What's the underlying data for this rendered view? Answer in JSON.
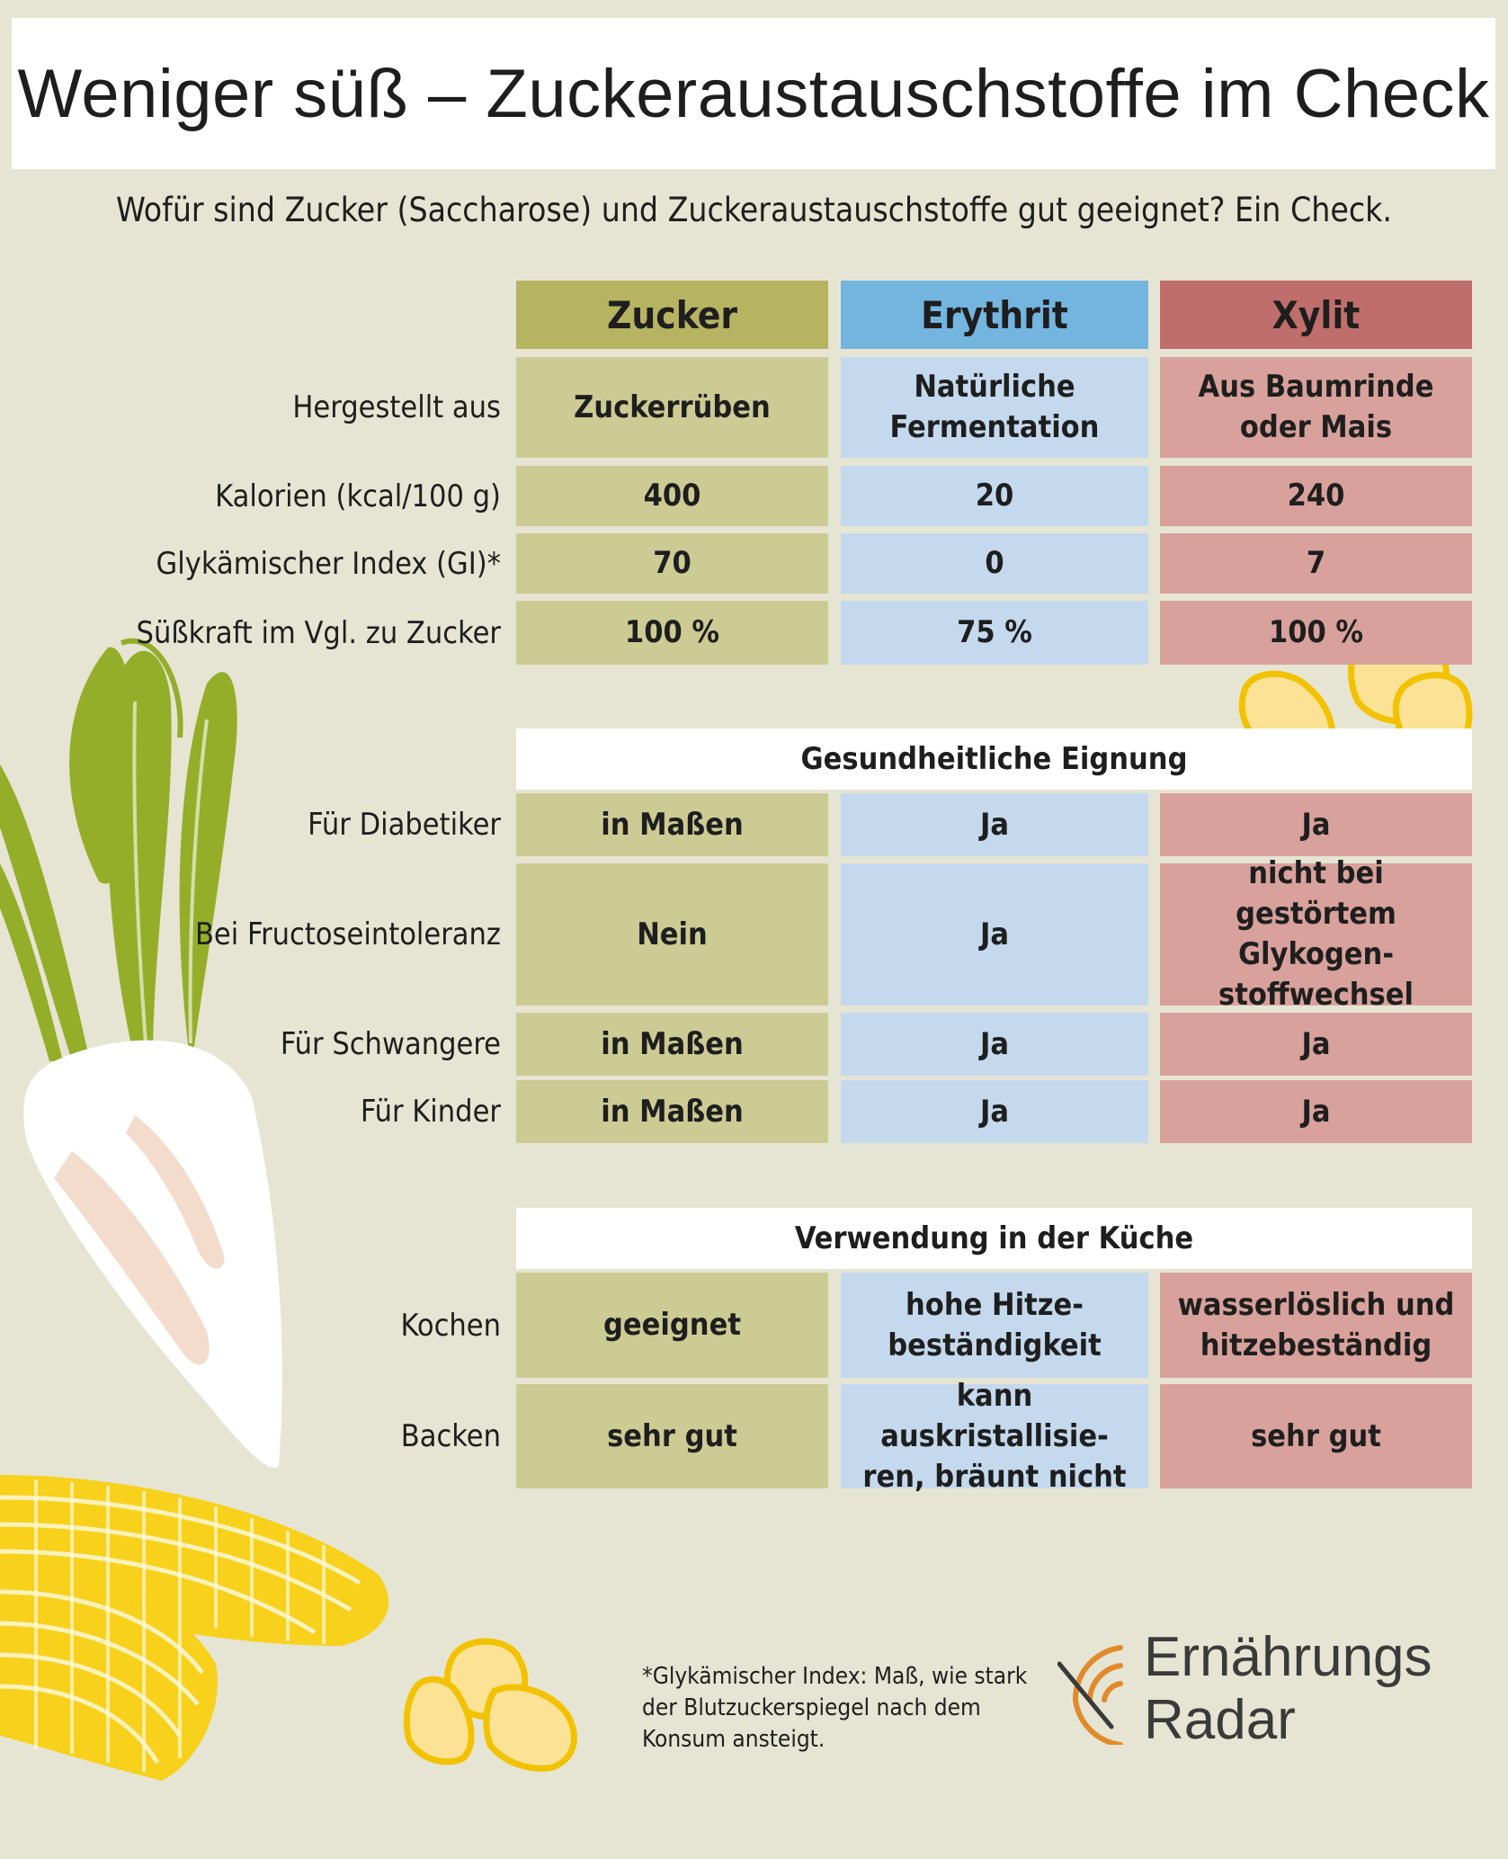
{
  "title": "Weniger süß – Zuckeraustauschstoffe im Check",
  "subtitle": "Wofür sind Zucker (Saccharose) und Zuckeraustauschstoffe gut geeignet? Ein Check.",
  "columns": [
    "Zucker",
    "Erythrit",
    "Xylit"
  ],
  "colors": {
    "background": "#e6e5d3",
    "zucker_header": "#b6b461",
    "erythrit_header": "#74b5e0",
    "xylit_header": "#c06e6b",
    "zucker_cell": "#cccb94",
    "erythrit_cell": "#c4d9ee",
    "xylit_cell": "#d8a19b"
  },
  "section1": {
    "rows": [
      {
        "label": "Hergestellt aus",
        "values": [
          [
            "Zuckerrüben"
          ],
          [
            "Natürliche",
            "Fermentation"
          ],
          [
            "Aus Baumrinde",
            "oder Mais"
          ]
        ]
      },
      {
        "label": "Kalorien (kcal/100 g)",
        "values": [
          [
            "400"
          ],
          [
            "20"
          ],
          [
            "240"
          ]
        ]
      },
      {
        "label": "Glykämischer Index (GI)*",
        "values": [
          [
            "70"
          ],
          [
            "0"
          ],
          [
            "7"
          ]
        ]
      },
      {
        "label": "Süßkraft im Vgl. zu Zucker",
        "values": [
          [
            "100 %"
          ],
          [
            "75 %"
          ],
          [
            "100 %"
          ]
        ]
      }
    ]
  },
  "section2": {
    "title": "Gesundheitliche Eignung",
    "rows": [
      {
        "label": "Für Diabetiker",
        "values": [
          [
            "in Maßen"
          ],
          [
            "Ja"
          ],
          [
            "Ja"
          ]
        ]
      },
      {
        "label": "Bei Fructoseintoleranz",
        "values": [
          [
            "Nein"
          ],
          [
            "Ja"
          ],
          [
            "nicht bei gestörtem",
            "Glykogen-",
            "stoffwechsel"
          ]
        ]
      },
      {
        "label": "Für Schwangere",
        "values": [
          [
            "in Maßen"
          ],
          [
            "Ja"
          ],
          [
            "Ja"
          ]
        ]
      },
      {
        "label": "Für Kinder",
        "values": [
          [
            "in Maßen"
          ],
          [
            "Ja"
          ],
          [
            "Ja"
          ]
        ]
      }
    ]
  },
  "section3": {
    "title": "Verwendung in der Küche",
    "rows": [
      {
        "label": "Kochen",
        "values": [
          [
            "geeignet"
          ],
          [
            "hohe Hitze-",
            "beständigkeit"
          ],
          [
            "wasserlöslich und",
            "hitzebeständig"
          ]
        ]
      },
      {
        "label": "Backen",
        "values": [
          [
            "sehr gut"
          ],
          [
            "kann auskristallisie-",
            "ren, bräunt nicht"
          ],
          [
            "sehr gut"
          ]
        ]
      }
    ]
  },
  "footnote": [
    "*Glykämischer Index: Maß, wie stark",
    "der Blutzuckerspiegel nach dem",
    "Konsum ansteigt."
  ],
  "logo": [
    "Ernährungs",
    "Radar"
  ],
  "icons": [
    "sugar-beet-illustration",
    "corn-cob-illustration",
    "corn-kernel-illustration",
    "radar-logo-icon"
  ]
}
